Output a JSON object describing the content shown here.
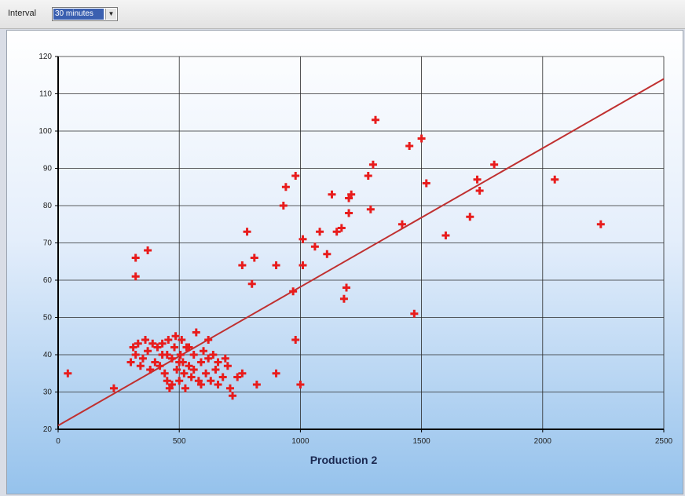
{
  "toolbar": {
    "interval_label": "Interval",
    "interval_value": "30 minutes"
  },
  "chart_data": {
    "type": "scatter",
    "title": "",
    "xlabel": "Production 2",
    "ylabel": "",
    "xlim": [
      0,
      2500
    ],
    "ylim": [
      20,
      120
    ],
    "xticks": [
      "0",
      "500",
      "1000",
      "1500",
      "2000",
      "2500"
    ],
    "yticks": [
      "20",
      "30",
      "40",
      "50",
      "60",
      "70",
      "80",
      "90",
      "100",
      "110",
      "120"
    ],
    "grid": true,
    "marker_color": "#e81c1c",
    "trend_color": "#c03030",
    "trendline": [
      [
        0,
        21
      ],
      [
        2500,
        114
      ]
    ],
    "series": [
      {
        "points": [
          [
            40,
            35
          ],
          [
            230,
            31
          ],
          [
            300,
            38
          ],
          [
            310,
            42
          ],
          [
            320,
            40
          ],
          [
            330,
            43
          ],
          [
            340,
            37
          ],
          [
            350,
            39
          ],
          [
            360,
            44
          ],
          [
            370,
            41
          ],
          [
            380,
            36
          ],
          [
            390,
            43
          ],
          [
            400,
            38
          ],
          [
            410,
            42
          ],
          [
            420,
            37
          ],
          [
            430,
            40
          ],
          [
            440,
            35
          ],
          [
            450,
            33
          ],
          [
            455,
            44
          ],
          [
            460,
            31
          ],
          [
            470,
            39
          ],
          [
            480,
            42
          ],
          [
            485,
            45
          ],
          [
            490,
            36
          ],
          [
            500,
            33
          ],
          [
            505,
            40
          ],
          [
            510,
            44
          ],
          [
            515,
            38
          ],
          [
            520,
            35
          ],
          [
            525,
            31
          ],
          [
            530,
            42
          ],
          [
            540,
            37
          ],
          [
            550,
            34
          ],
          [
            560,
            40
          ],
          [
            570,
            46
          ],
          [
            580,
            33
          ],
          [
            590,
            38
          ],
          [
            600,
            41
          ],
          [
            610,
            35
          ],
          [
            620,
            39
          ],
          [
            630,
            33
          ],
          [
            640,
            40
          ],
          [
            650,
            36
          ],
          [
            660,
            38
          ],
          [
            680,
            34
          ],
          [
            690,
            39
          ],
          [
            700,
            37
          ],
          [
            710,
            31
          ],
          [
            720,
            29
          ],
          [
            740,
            34
          ],
          [
            760,
            35
          ],
          [
            430,
            43
          ],
          [
            450,
            40
          ],
          [
            470,
            32
          ],
          [
            540,
            42
          ],
          [
            560,
            36
          ],
          [
            590,
            32
          ],
          [
            620,
            44
          ],
          [
            660,
            32
          ],
          [
            500,
            38
          ],
          [
            320,
            61
          ],
          [
            320,
            66
          ],
          [
            370,
            68
          ],
          [
            760,
            64
          ],
          [
            780,
            73
          ],
          [
            800,
            59
          ],
          [
            810,
            66
          ],
          [
            820,
            32
          ],
          [
            900,
            64
          ],
          [
            900,
            35
          ],
          [
            930,
            80
          ],
          [
            940,
            85
          ],
          [
            970,
            57
          ],
          [
            980,
            88
          ],
          [
            980,
            44
          ],
          [
            1000,
            32
          ],
          [
            1010,
            64
          ],
          [
            1010,
            71
          ],
          [
            1060,
            69
          ],
          [
            1080,
            73
          ],
          [
            1110,
            67
          ],
          [
            1130,
            83
          ],
          [
            1150,
            73
          ],
          [
            1170,
            74
          ],
          [
            1180,
            55
          ],
          [
            1190,
            58
          ],
          [
            1200,
            78
          ],
          [
            1200,
            82
          ],
          [
            1210,
            83
          ],
          [
            1280,
            88
          ],
          [
            1290,
            79
          ],
          [
            1300,
            91
          ],
          [
            1310,
            103
          ],
          [
            1420,
            75
          ],
          [
            1450,
            96
          ],
          [
            1470,
            51
          ],
          [
            1500,
            98
          ],
          [
            1520,
            86
          ],
          [
            1600,
            72
          ],
          [
            1700,
            77
          ],
          [
            1730,
            87
          ],
          [
            1740,
            84
          ],
          [
            1800,
            91
          ],
          [
            2050,
            87
          ],
          [
            2240,
            75
          ]
        ]
      }
    ]
  }
}
